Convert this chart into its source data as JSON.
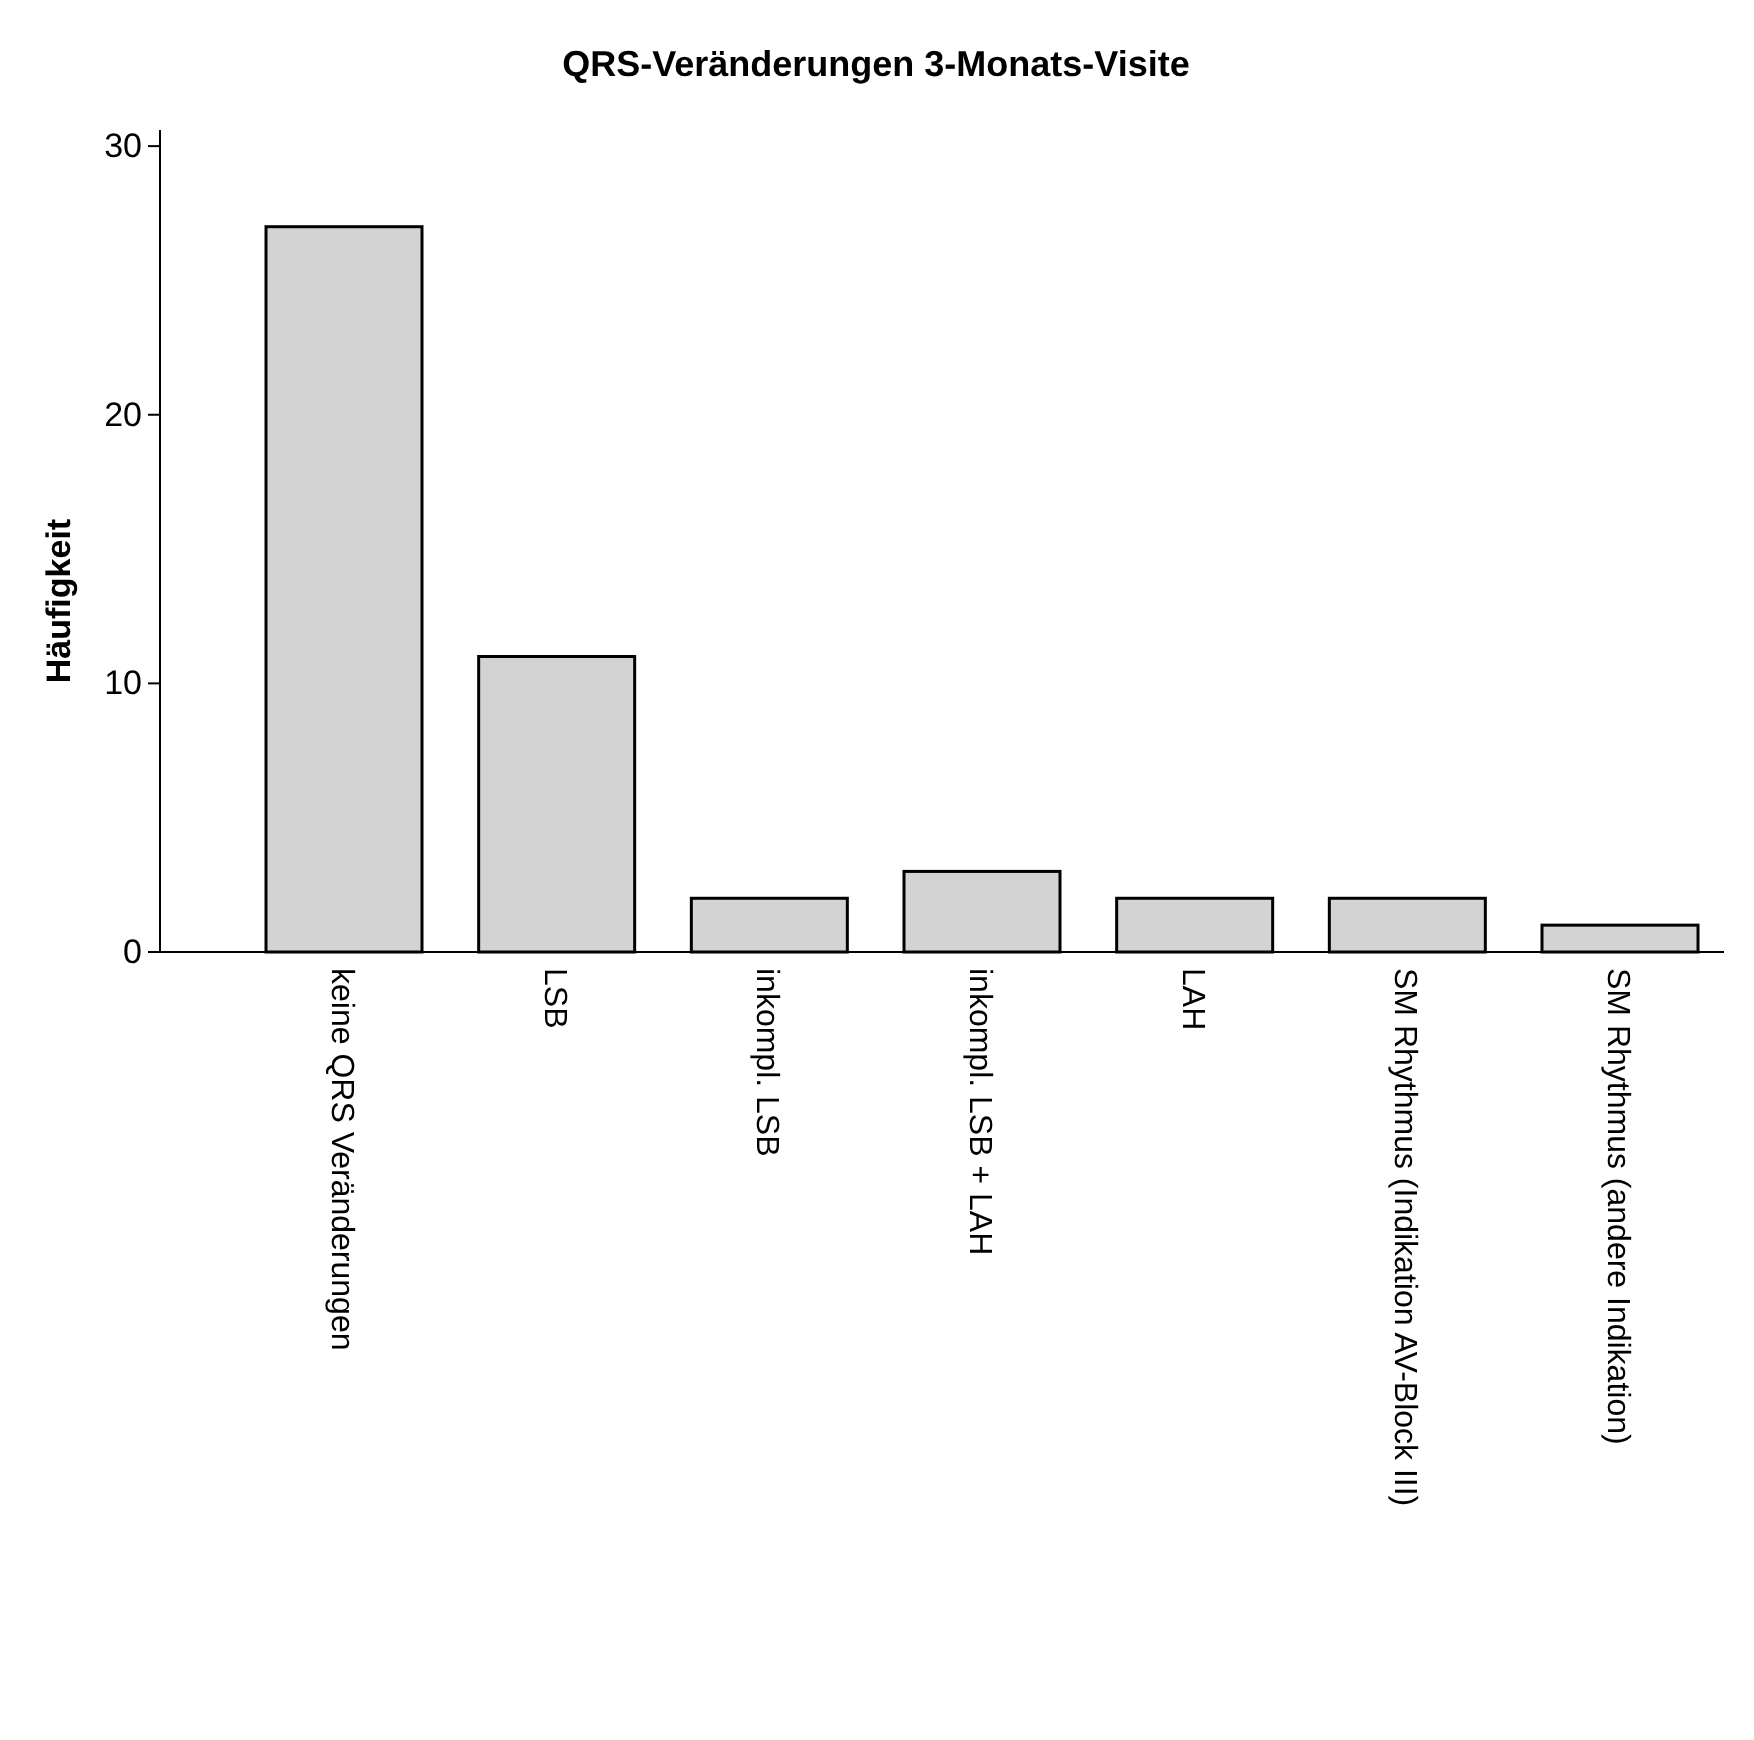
{
  "chart_data": {
    "type": "bar",
    "title": "QRS-Veränderungen 3-Monats-Visite",
    "ylabel": "Häufigkeit",
    "categories": [
      "keine  QRS Veränderungen",
      "LSB",
      "inkompl. LSB",
      "inkompl. LSB + LAH",
      "LAH",
      "SM Rhythmus (Indikation AV-Block III)",
      "SM Rhythmus (andere Indikation)"
    ],
    "values": [
      27,
      11,
      2,
      3,
      2,
      2,
      1
    ],
    "color": "#d3d3d3",
    "ylim": [
      0,
      30.6
    ],
    "yticks": [
      0,
      10,
      20,
      30
    ],
    "grid": false
  }
}
